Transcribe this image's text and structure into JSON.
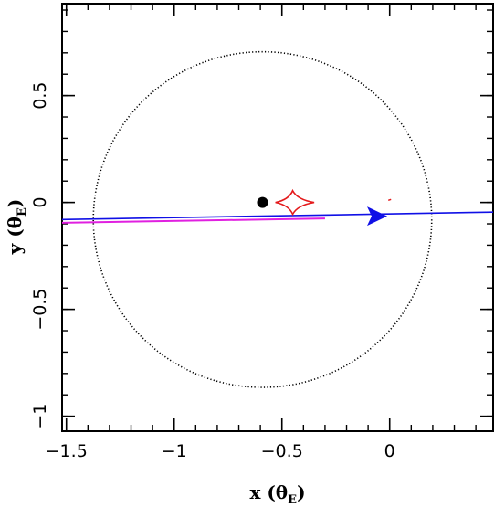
{
  "chart_data": {
    "type": "scatter",
    "xlabel": "x (θ",
    "xlabel_sub": "E",
    "xlabel_close": ")",
    "ylabel": "y (θ",
    "ylabel_sub": "E",
    "ylabel_close": ")",
    "xlim": [
      -1.52,
      0.48
    ],
    "ylim": [
      -1.07,
      0.93
    ],
    "x_ticks": [
      {
        "value": -1.5,
        "label": "−1.5"
      },
      {
        "value": -1.0,
        "label": "−1"
      },
      {
        "value": -0.5,
        "label": "−0.5"
      },
      {
        "value": 0.0,
        "label": "0"
      }
    ],
    "y_ticks": [
      {
        "value": -1.0,
        "label": "−1"
      },
      {
        "value": -0.5,
        "label": "−0.5"
      },
      {
        "value": 0.0,
        "label": "0"
      },
      {
        "value": 0.5,
        "label": "0.5"
      }
    ],
    "x_minor_step": 0.1,
    "y_minor_step": 0.1,
    "einstein_ring": {
      "cx": -0.59,
      "cy": -0.08,
      "r": 0.785,
      "color": "#000000",
      "style": "dotted"
    },
    "lens_mass": {
      "x": -0.59,
      "y": 0.0,
      "color": "#000000"
    },
    "caustic": {
      "cx": -0.45,
      "cy": 0.0,
      "color": "#e41a1c",
      "points": [
        [
          -0.35,
          0.0
        ],
        [
          -0.45,
          0.055
        ],
        [
          -0.53,
          0.0
        ],
        [
          -0.45,
          -0.055
        ]
      ]
    },
    "source_trajectory_magenta": {
      "color": "#e020e0",
      "points": [
        [
          -1.52,
          -0.095
        ],
        [
          -0.3,
          -0.075
        ]
      ]
    },
    "source_trajectory_blue": {
      "color": "#1010e6",
      "points": [
        [
          -1.52,
          -0.08
        ],
        [
          0.48,
          -0.045
        ]
      ]
    },
    "direction_arrow": {
      "x": -0.02,
      "y": -0.062,
      "color": "#1010e6"
    },
    "small_mark": {
      "x": 0.0,
      "y": 0.01,
      "color": "#e41a1c"
    }
  }
}
